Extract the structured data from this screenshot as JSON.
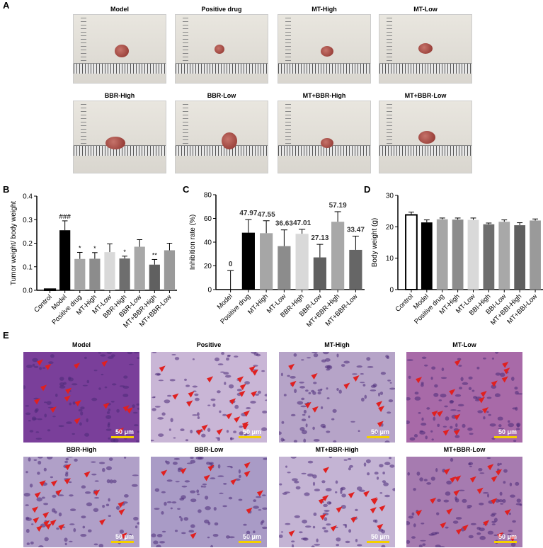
{
  "panel_labels": {
    "a": "A",
    "b": "B",
    "c": "C",
    "d": "D",
    "e": "E"
  },
  "panel_a": {
    "photos": [
      "Model",
      "Positive drug",
      "MT-High",
      "MT-Low",
      "BBR-High",
      "BBR-Low",
      "MT+BBR-High",
      "MT+BBR-Low"
    ]
  },
  "panel_e": {
    "images": [
      "Model",
      "Positive",
      "MT-High",
      "MT-Low",
      "BBR-High",
      "BBR-Low",
      "MT+BBR-High",
      "MT+BBR-Low"
    ],
    "scale_bar": "50 μm",
    "hist_color": "#8e5fa8",
    "arrow_color": "#e02020"
  },
  "chart_data": [
    {
      "panel": "B",
      "type": "bar",
      "ylabel": "Tumor weight/ body weight",
      "ylim": [
        0,
        0.4
      ],
      "yticks": [
        "0.0",
        "0.1",
        "0.2",
        "0.3",
        "0.4"
      ],
      "categories": [
        "Control",
        "Model",
        "Positive drug",
        "MT-High",
        "MT-Low",
        "BBR-High",
        "BBR-Low",
        "MT+BBR-High",
        "MT+BBR-Low"
      ],
      "values": [
        0.005,
        0.255,
        0.133,
        0.134,
        0.162,
        0.135,
        0.185,
        0.109,
        0.17
      ],
      "errors": [
        0.001,
        0.04,
        0.028,
        0.026,
        0.035,
        0.01,
        0.03,
        0.022,
        0.03
      ],
      "annotations": [
        "",
        "###",
        "*",
        "*",
        "",
        "*",
        "",
        "**",
        ""
      ],
      "colors": [
        "#ffffff",
        "#000000",
        "#a6a6a6",
        "#8c8c8c",
        "#d9d9d9",
        "#6e6e6e",
        "#a8a8a8",
        "#606060",
        "#9a9a9a"
      ]
    },
    {
      "panel": "C",
      "type": "bar",
      "ylabel": "Inhibition rate (%)",
      "ylim": [
        0,
        80
      ],
      "yticks": [
        "0",
        "20",
        "40",
        "60",
        "80"
      ],
      "categories": [
        "Model",
        "Positive drug",
        "MT-High",
        "MT-Low",
        "BBR-High",
        "BBR-Low",
        "MT+BBR-High",
        "MT+BBR-Low"
      ],
      "values": [
        0,
        47.97,
        47.55,
        36.63,
        47.01,
        27.13,
        57.19,
        33.47
      ],
      "errors": [
        16,
        11,
        10.5,
        13.7,
        3.8,
        11,
        8.5,
        11.6
      ],
      "data_labels": [
        "0",
        "47.97",
        "47.55",
        "36.63",
        "47.01",
        "27.13",
        "57.19",
        "33.47"
      ],
      "colors": [
        "#ffffff",
        "#000000",
        "#a6a6a6",
        "#8c8c8c",
        "#d9d9d9",
        "#606060",
        "#a8a8a8",
        "#666666"
      ]
    },
    {
      "panel": "D",
      "type": "bar",
      "ylabel": "Body weight (g)",
      "ylim": [
        0,
        30
      ],
      "yticks": [
        "0",
        "10",
        "20",
        "30"
      ],
      "categories": [
        "Control",
        "Model",
        "Positive drug",
        "MT-High",
        "MT-Low",
        "BBI-High",
        "BBI-Low",
        "MT+BBI-High",
        "MT+BBI-Low"
      ],
      "values": [
        23.8,
        21.4,
        22.4,
        22.3,
        22.2,
        20.8,
        21.6,
        20.5,
        22.0
      ],
      "errors": [
        0.9,
        0.8,
        0.4,
        0.5,
        0.6,
        0.4,
        0.6,
        0.8,
        0.5
      ],
      "colors": [
        "#ffffff",
        "#000000",
        "#a6a6a6",
        "#8c8c8c",
        "#d9d9d9",
        "#6e6e6e",
        "#a8a8a8",
        "#606060",
        "#9a9a9a"
      ]
    }
  ]
}
